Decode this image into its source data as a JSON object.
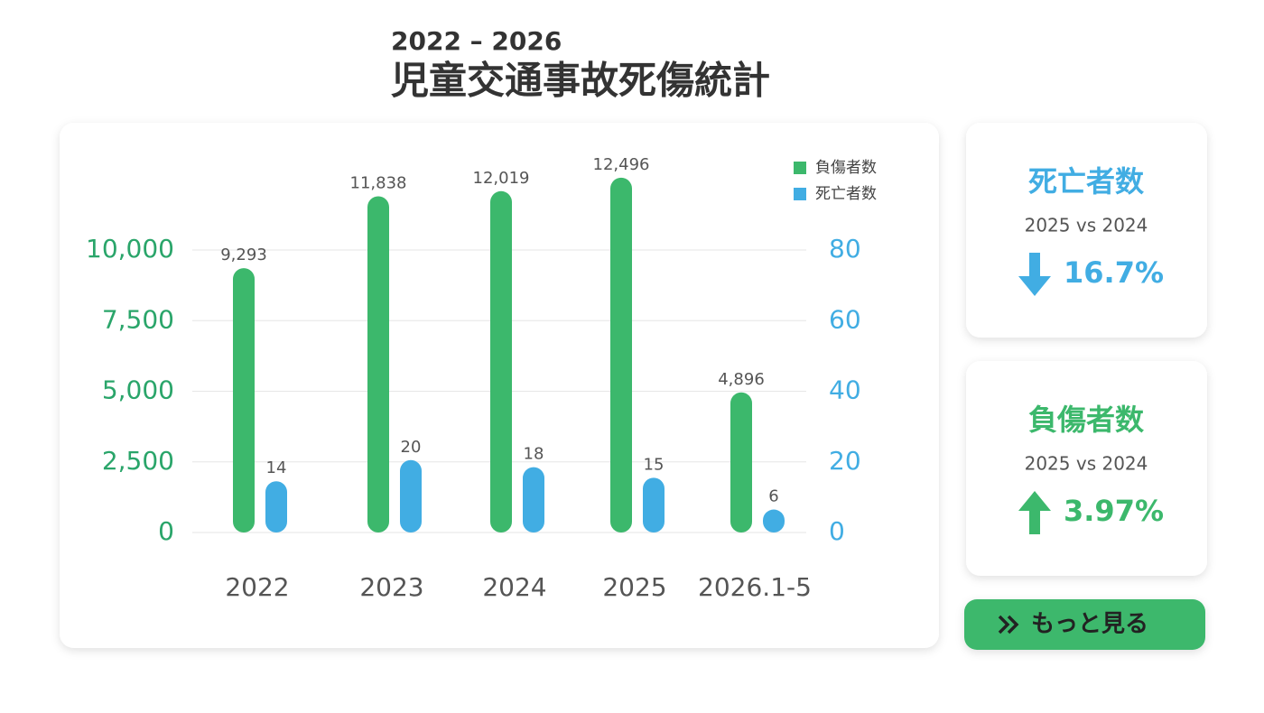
{
  "chart_data": {
    "type": "bar",
    "subtitle": "2022 – 2026",
    "title": "児童交通事故死傷統計",
    "categories": [
      "2022",
      "2023",
      "2024",
      "2025",
      "2026.1-5"
    ],
    "series": [
      {
        "name": "負傷者数",
        "color": "#3cb86c",
        "values": [
          9293,
          11838,
          12019,
          12496,
          4896
        ],
        "value_labels": [
          "9,293",
          "11,838",
          "12,019",
          "12,496",
          "4,896"
        ]
      },
      {
        "name": "死亡者数",
        "color": "#41ade3",
        "axis": "y2",
        "values": [
          14,
          20,
          18,
          15,
          6
        ]
      }
    ],
    "ylim": [
      0,
      10000
    ],
    "yticks": [
      0,
      {
        "value": 2500,
        "label": "2,500"
      },
      {
        "value": 5000,
        "label": "5,000"
      },
      {
        "value": 7500,
        "label": "7,500"
      },
      {
        "value": 10000,
        "label": "10,000"
      }
    ],
    "y2lim": [
      0,
      80
    ],
    "y2ticks": [
      0,
      20,
      40,
      60,
      80
    ],
    "grid": true,
    "legend": "top-right"
  },
  "cards": [
    {
      "title": "死亡者数",
      "comparison": "2025  vs  2024",
      "change": "16.7%",
      "direction": "down",
      "color": "#41ade3"
    },
    {
      "title": "負傷者数",
      "comparison": "2025  vs  2024",
      "change": "3.97%",
      "direction": "up",
      "color": "#3cb86c"
    }
  ],
  "button": {
    "label": "もっと見る"
  }
}
